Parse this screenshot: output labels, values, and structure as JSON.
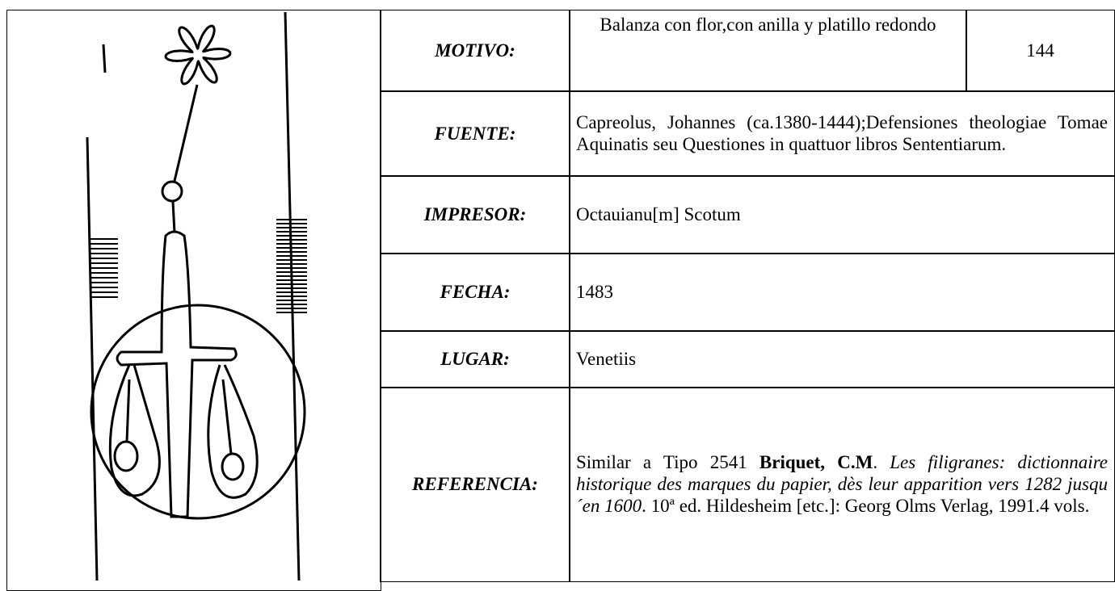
{
  "table": {
    "rows": [
      {
        "label": "MOTIVO:",
        "value": "Balanza con flor,con anilla y platillo redondo",
        "number": "144"
      },
      {
        "label": "FUENTE:",
        "value": "Capreolus, Johannes (ca.1380-1444);Defensiones theologiae Tomae Aquinatis seu Questiones in quattuor libros Sententiarum."
      },
      {
        "label": "IMPRESOR:",
        "value": "Octauianu[m] Scotum"
      },
      {
        "label": "FECHA:",
        "value": "1483"
      },
      {
        "label": "LUGAR:",
        "value": "Venetiis"
      },
      {
        "label": "REFERENCIA:",
        "parts": [
          {
            "text": "Similar a Tipo 2541 ",
            "style": "normal"
          },
          {
            "text": "Briquet, C.M",
            "style": "bold"
          },
          {
            "text": ". ",
            "style": "normal"
          },
          {
            "text": "Les filigranes: dictionnaire historique des marques du papier, dès leur apparition vers 1282 jusqu´en 1600",
            "style": "italic"
          },
          {
            "text": ". 10ª ed. Hildesheim [etc.]: Georg Olms Verlag, 1991.4 vols.",
            "style": "normal"
          }
        ]
      }
    ]
  }
}
